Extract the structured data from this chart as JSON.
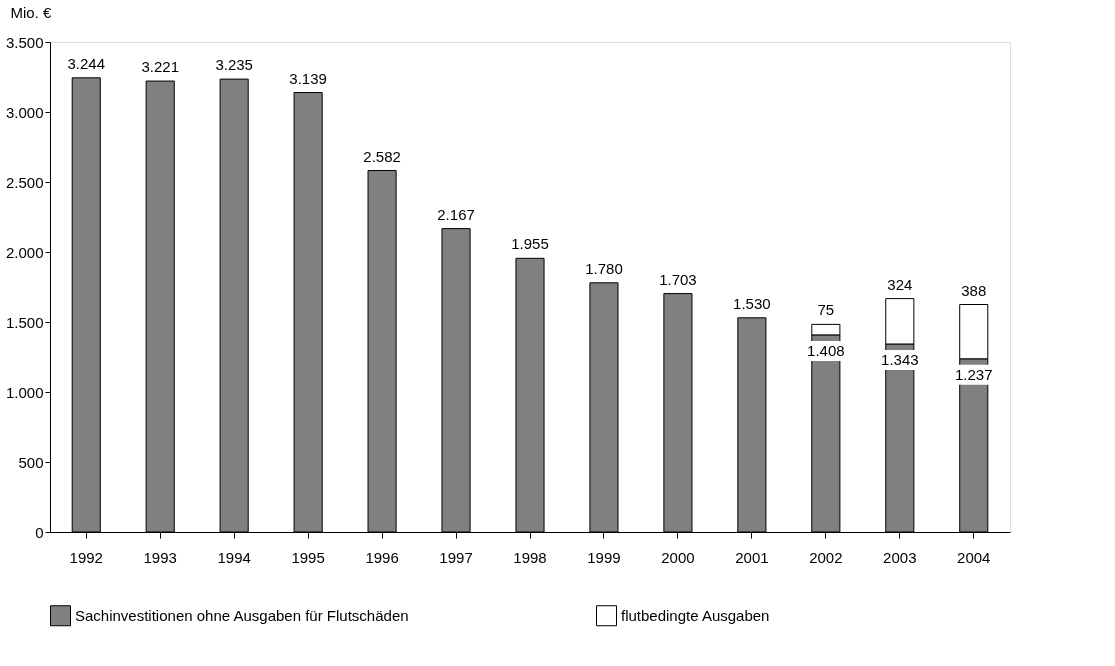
{
  "chart_data": {
    "type": "bar",
    "stacked": true,
    "ylabel": "Mio. €",
    "categories": [
      "1992",
      "1993",
      "1994",
      "1995",
      "1996",
      "1997",
      "1998",
      "1999",
      "2000",
      "2001",
      "2002",
      "2003",
      "2004"
    ],
    "series": [
      {
        "name": "Sachinvestitionen ohne Ausgaben für  Flutschäden",
        "color": "#808080",
        "values": [
          3244,
          3221,
          3235,
          3139,
          2582,
          2167,
          1955,
          1780,
          1703,
          1530,
          1408,
          1343,
          1237
        ],
        "value_labels": [
          "3.244",
          "3.221",
          "3.235",
          "3.139",
          "2.582",
          "2.167",
          "1.955",
          "1.780",
          "1.703",
          "1.530",
          "1.408",
          "1.343",
          "1.237"
        ]
      },
      {
        "name": "flutbedingte Ausgaben",
        "color": "#ffffff",
        "values": [
          null,
          null,
          null,
          null,
          null,
          null,
          null,
          null,
          null,
          null,
          75,
          324,
          388
        ],
        "value_labels": [
          null,
          null,
          null,
          null,
          null,
          null,
          null,
          null,
          null,
          null,
          "75",
          "324",
          "388"
        ]
      }
    ],
    "ylim": [
      0,
      3500
    ],
    "yticks": [
      0,
      500,
      {
        "value": 1000,
        "label": "1.000"
      },
      {
        "value": 1500,
        "label": "1.500"
      },
      {
        "value": 2000,
        "label": "2.000"
      },
      {
        "value": 2500,
        "label": "2.500"
      },
      {
        "value": 3000,
        "label": "3.000"
      },
      {
        "value": 3500,
        "label": "3.500"
      }
    ],
    "grid": false,
    "legend": "bottom"
  }
}
